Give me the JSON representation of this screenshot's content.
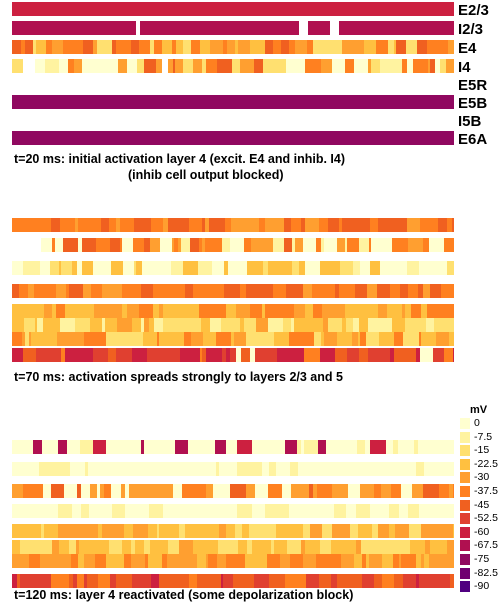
{
  "layers": [
    "E2/3",
    "I2/3",
    "E4",
    "I4",
    "E5R",
    "E5B",
    "I5B",
    "E6A"
  ],
  "panels": [
    {
      "caption_line1": "t=20 ms: initial activation  layer 4 (excit. E4 and inhib. I4)",
      "caption_line2": "(inhib cell output blocked)"
    },
    {
      "caption_line1": "t=70 ms: activation spreads strongly to layers 2/3 and 5",
      "caption_line2": ""
    },
    {
      "caption_line1": "t=120 ms: layer 4 reactivated (some depolarization block)",
      "caption_line2": ""
    }
  ],
  "colorbar": {
    "unit": "mV",
    "ticks": [
      "0",
      "-7.5",
      "-15",
      "-22.5",
      "-30",
      "-37.5",
      "-45",
      "-52.5",
      "-60",
      "-67.5",
      "-75",
      "-82.5",
      "-90"
    ],
    "colors": [
      "#ffffd0",
      "#fff3a0",
      "#ffe070",
      "#ffc040",
      "#ff9f30",
      "#ff8020",
      "#f06020",
      "#e04030",
      "#cc2040",
      "#b01050",
      "#900860",
      "#700070",
      "#500080"
    ]
  }
}
